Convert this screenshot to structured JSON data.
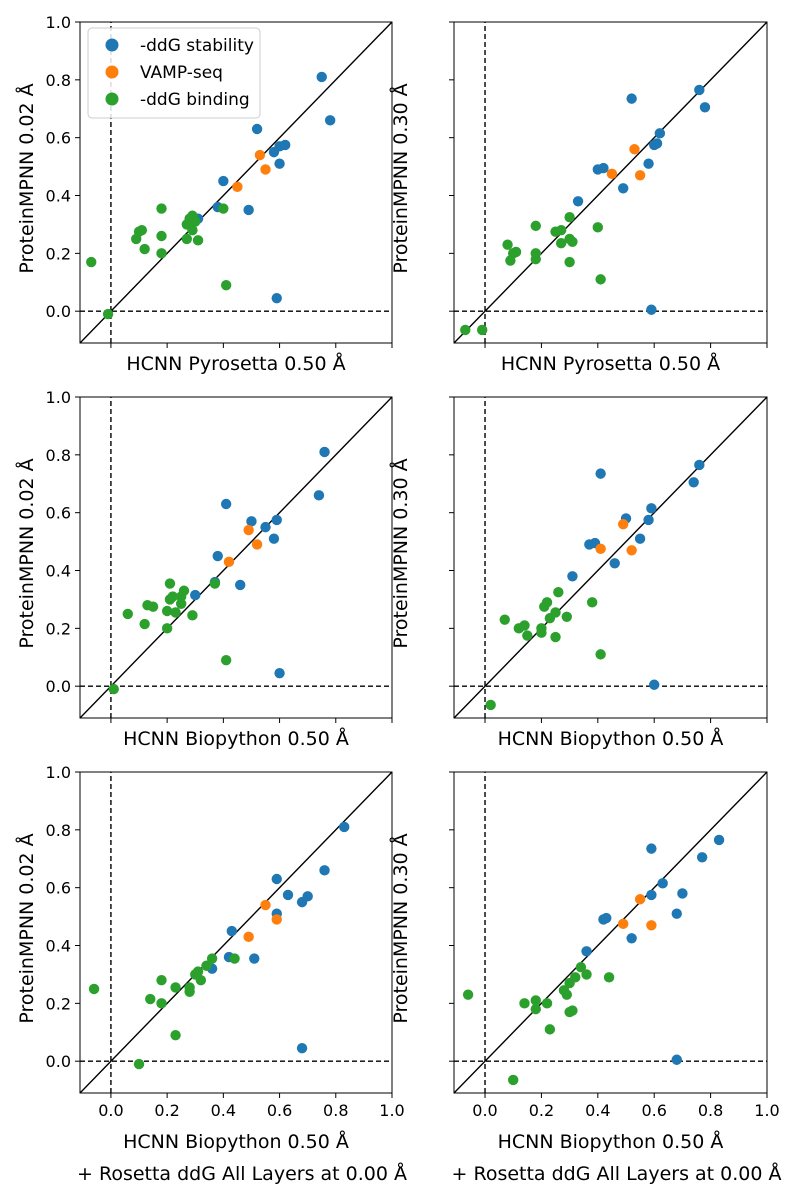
{
  "figure": {
    "colors": {
      "-ddG stability": "#1f77b4",
      "VAMP-seq": "#ff7f0e",
      "-ddG binding": "#2ca02c"
    },
    "legend": {
      "placement": "top-left",
      "entries": [
        "-ddG stability",
        "VAMP-seq",
        "-ddG binding"
      ]
    }
  },
  "chart_data": [
    {
      "type": "scatter",
      "xlabel": "HCNN Pyrosetta 0.50 Å",
      "ylabel": "ProteinMPNN 0.02 Å",
      "xlim": [
        -0.11,
        1.0
      ],
      "ylim": [
        -0.11,
        1.0
      ],
      "xticks": [
        0.0,
        0.2,
        0.4,
        0.6,
        0.8,
        1.0
      ],
      "yticks": [
        0.0,
        0.2,
        0.4,
        0.6,
        0.8,
        1.0
      ],
      "show_xticklabels": false,
      "show_yticklabels": true,
      "legend": true,
      "series": [
        {
          "name": "-ddG stability",
          "points": [
            [
              0.75,
              0.81
            ],
            [
              0.78,
              0.66
            ],
            [
              0.52,
              0.63
            ],
            [
              0.58,
              0.55
            ],
            [
              0.6,
              0.57
            ],
            [
              0.62,
              0.575
            ],
            [
              0.6,
              0.51
            ],
            [
              0.4,
              0.45
            ],
            [
              0.31,
              0.32
            ],
            [
              0.38,
              0.36
            ],
            [
              0.49,
              0.35
            ],
            [
              0.59,
              0.045
            ]
          ]
        },
        {
          "name": "VAMP-seq",
          "points": [
            [
              0.53,
              0.54
            ],
            [
              0.55,
              0.49
            ],
            [
              0.45,
              0.43
            ]
          ]
        },
        {
          "name": "-ddG binding",
          "points": [
            [
              -0.07,
              0.17
            ],
            [
              -0.01,
              -0.01
            ],
            [
              0.18,
              0.355
            ],
            [
              0.09,
              0.25
            ],
            [
              0.1,
              0.275
            ],
            [
              0.11,
              0.28
            ],
            [
              0.12,
              0.215
            ],
            [
              0.18,
              0.26
            ],
            [
              0.18,
              0.2
            ],
            [
              0.27,
              0.3
            ],
            [
              0.28,
              0.32
            ],
            [
              0.29,
              0.33
            ],
            [
              0.3,
              0.31
            ],
            [
              0.27,
              0.25
            ],
            [
              0.29,
              0.28
            ],
            [
              0.31,
              0.245
            ],
            [
              0.4,
              0.355
            ],
            [
              0.41,
              0.09
            ]
          ]
        }
      ]
    },
    {
      "type": "scatter",
      "xlabel": "HCNN Pyrosetta 0.50 Å",
      "ylabel": "ProteinMPNN 0.30 Å",
      "xlim": [
        -0.11,
        1.0
      ],
      "ylim": [
        -0.11,
        1.0
      ],
      "xticks": [
        0.0,
        0.2,
        0.4,
        0.6,
        0.8,
        1.0
      ],
      "yticks": [
        0.0,
        0.2,
        0.4,
        0.6,
        0.8,
        1.0
      ],
      "show_xticklabels": false,
      "show_yticklabels": false,
      "legend": false,
      "series": [
        {
          "name": "-ddG stability",
          "points": [
            [
              0.52,
              0.735
            ],
            [
              0.76,
              0.765
            ],
            [
              0.78,
              0.705
            ],
            [
              0.62,
              0.615
            ],
            [
              0.6,
              0.575
            ],
            [
              0.61,
              0.58
            ],
            [
              0.58,
              0.51
            ],
            [
              0.4,
              0.49
            ],
            [
              0.42,
              0.495
            ],
            [
              0.49,
              0.425
            ],
            [
              0.33,
              0.38
            ],
            [
              0.59,
              0.005
            ]
          ]
        },
        {
          "name": "VAMP-seq",
          "points": [
            [
              0.53,
              0.56
            ],
            [
              0.45,
              0.475
            ],
            [
              0.55,
              0.47
            ]
          ]
        },
        {
          "name": "-ddG binding",
          "points": [
            [
              -0.07,
              -0.065
            ],
            [
              -0.01,
              -0.065
            ],
            [
              0.08,
              0.23
            ],
            [
              0.09,
              0.175
            ],
            [
              0.1,
              0.2
            ],
            [
              0.11,
              0.205
            ],
            [
              0.18,
              0.295
            ],
            [
              0.18,
              0.2
            ],
            [
              0.18,
              0.18
            ],
            [
              0.25,
              0.275
            ],
            [
              0.27,
              0.28
            ],
            [
              0.3,
              0.325
            ],
            [
              0.3,
              0.25
            ],
            [
              0.27,
              0.235
            ],
            [
              0.31,
              0.24
            ],
            [
              0.3,
              0.17
            ],
            [
              0.4,
              0.29
            ],
            [
              0.41,
              0.11
            ]
          ]
        }
      ]
    },
    {
      "type": "scatter",
      "xlabel": "HCNN Biopython 0.50 Å",
      "ylabel": "ProteinMPNN 0.02 Å",
      "xlim": [
        -0.11,
        1.0
      ],
      "ylim": [
        -0.11,
        1.0
      ],
      "xticks": [
        0.0,
        0.2,
        0.4,
        0.6,
        0.8,
        1.0
      ],
      "yticks": [
        0.0,
        0.2,
        0.4,
        0.6,
        0.8,
        1.0
      ],
      "show_xticklabels": false,
      "show_yticklabels": true,
      "legend": false,
      "series": [
        {
          "name": "-ddG stability",
          "points": [
            [
              0.76,
              0.81
            ],
            [
              0.74,
              0.66
            ],
            [
              0.41,
              0.63
            ],
            [
              0.5,
              0.57
            ],
            [
              0.55,
              0.55
            ],
            [
              0.59,
              0.575
            ],
            [
              0.58,
              0.51
            ],
            [
              0.38,
              0.45
            ],
            [
              0.3,
              0.315
            ],
            [
              0.37,
              0.36
            ],
            [
              0.46,
              0.35
            ],
            [
              0.6,
              0.045
            ]
          ]
        },
        {
          "name": "VAMP-seq",
          "points": [
            [
              0.49,
              0.54
            ],
            [
              0.52,
              0.49
            ],
            [
              0.42,
              0.43
            ]
          ]
        },
        {
          "name": "-ddG binding",
          "points": [
            [
              0.01,
              -0.01
            ],
            [
              0.06,
              0.25
            ],
            [
              0.13,
              0.28
            ],
            [
              0.15,
              0.275
            ],
            [
              0.12,
              0.215
            ],
            [
              0.21,
              0.355
            ],
            [
              0.2,
              0.26
            ],
            [
              0.21,
              0.3
            ],
            [
              0.22,
              0.31
            ],
            [
              0.26,
              0.33
            ],
            [
              0.25,
              0.31
            ],
            [
              0.25,
              0.285
            ],
            [
              0.23,
              0.255
            ],
            [
              0.2,
              0.2
            ],
            [
              0.29,
              0.245
            ],
            [
              0.37,
              0.355
            ],
            [
              0.41,
              0.09
            ]
          ]
        }
      ]
    },
    {
      "type": "scatter",
      "xlabel": "HCNN Biopython 0.50 Å",
      "ylabel": "ProteinMPNN 0.30 Å",
      "xlim": [
        -0.11,
        1.0
      ],
      "ylim": [
        -0.11,
        1.0
      ],
      "xticks": [
        0.0,
        0.2,
        0.4,
        0.6,
        0.8,
        1.0
      ],
      "yticks": [
        0.0,
        0.2,
        0.4,
        0.6,
        0.8,
        1.0
      ],
      "show_xticklabels": false,
      "show_yticklabels": false,
      "legend": false,
      "series": [
        {
          "name": "-ddG stability",
          "points": [
            [
              0.41,
              0.735
            ],
            [
              0.76,
              0.765
            ],
            [
              0.74,
              0.705
            ],
            [
              0.59,
              0.615
            ],
            [
              0.5,
              0.58
            ],
            [
              0.58,
              0.575
            ],
            [
              0.55,
              0.51
            ],
            [
              0.37,
              0.49
            ],
            [
              0.39,
              0.495
            ],
            [
              0.46,
              0.425
            ],
            [
              0.31,
              0.38
            ],
            [
              0.6,
              0.005
            ]
          ]
        },
        {
          "name": "VAMP-seq",
          "points": [
            [
              0.49,
              0.56
            ],
            [
              0.41,
              0.475
            ],
            [
              0.52,
              0.47
            ]
          ]
        },
        {
          "name": "-ddG binding",
          "points": [
            [
              0.02,
              -0.065
            ],
            [
              0.07,
              0.23
            ],
            [
              0.12,
              0.2
            ],
            [
              0.14,
              0.21
            ],
            [
              0.15,
              0.175
            ],
            [
              0.2,
              0.185
            ],
            [
              0.2,
              0.2
            ],
            [
              0.21,
              0.275
            ],
            [
              0.22,
              0.29
            ],
            [
              0.23,
              0.235
            ],
            [
              0.25,
              0.255
            ],
            [
              0.26,
              0.325
            ],
            [
              0.29,
              0.24
            ],
            [
              0.25,
              0.17
            ],
            [
              0.38,
              0.29
            ],
            [
              0.41,
              0.11
            ]
          ]
        }
      ]
    },
    {
      "type": "scatter",
      "xlabel": "HCNN Biopython 0.50 Å",
      "xlabel2": "+ Rosetta ddG All Layers at 0.00 Å",
      "ylabel": "ProteinMPNN 0.02 Å",
      "xlim": [
        -0.11,
        1.0
      ],
      "ylim": [
        -0.11,
        1.0
      ],
      "xticks": [
        0.0,
        0.2,
        0.4,
        0.6,
        0.8,
        1.0
      ],
      "yticks": [
        0.0,
        0.2,
        0.4,
        0.6,
        0.8,
        1.0
      ],
      "show_xticklabels": true,
      "show_yticklabels": true,
      "legend": false,
      "series": [
        {
          "name": "-ddG stability",
          "points": [
            [
              0.83,
              0.81
            ],
            [
              0.76,
              0.66
            ],
            [
              0.59,
              0.63
            ],
            [
              0.63,
              0.575
            ],
            [
              0.7,
              0.57
            ],
            [
              0.68,
              0.55
            ],
            [
              0.59,
              0.51
            ],
            [
              0.43,
              0.45
            ],
            [
              0.36,
              0.32
            ],
            [
              0.42,
              0.36
            ],
            [
              0.51,
              0.355
            ],
            [
              0.68,
              0.045
            ]
          ]
        },
        {
          "name": "VAMP-seq",
          "points": [
            [
              0.55,
              0.54
            ],
            [
              0.59,
              0.49
            ],
            [
              0.49,
              0.43
            ]
          ]
        },
        {
          "name": "-ddG binding",
          "points": [
            [
              -0.06,
              0.25
            ],
            [
              0.1,
              -0.01
            ],
            [
              0.14,
              0.215
            ],
            [
              0.18,
              0.28
            ],
            [
              0.18,
              0.2
            ],
            [
              0.23,
              0.255
            ],
            [
              0.28,
              0.24
            ],
            [
              0.28,
              0.255
            ],
            [
              0.3,
              0.3
            ],
            [
              0.31,
              0.31
            ],
            [
              0.32,
              0.28
            ],
            [
              0.34,
              0.33
            ],
            [
              0.36,
              0.355
            ],
            [
              0.44,
              0.355
            ],
            [
              0.23,
              0.09
            ]
          ]
        }
      ]
    },
    {
      "type": "scatter",
      "xlabel": "HCNN Biopython 0.50 Å",
      "xlabel2": "+ Rosetta ddG All Layers at 0.00 Å",
      "ylabel": "ProteinMPNN 0.30 Å",
      "xlim": [
        -0.11,
        1.0
      ],
      "ylim": [
        -0.11,
        1.0
      ],
      "xticks": [
        0.0,
        0.2,
        0.4,
        0.6,
        0.8,
        1.0
      ],
      "yticks": [
        0.0,
        0.2,
        0.4,
        0.6,
        0.8,
        1.0
      ],
      "show_xticklabels": true,
      "show_yticklabels": false,
      "legend": false,
      "series": [
        {
          "name": "-ddG stability",
          "points": [
            [
              0.59,
              0.735
            ],
            [
              0.83,
              0.765
            ],
            [
              0.77,
              0.705
            ],
            [
              0.63,
              0.615
            ],
            [
              0.7,
              0.58
            ],
            [
              0.59,
              0.575
            ],
            [
              0.68,
              0.51
            ],
            [
              0.42,
              0.49
            ],
            [
              0.43,
              0.495
            ],
            [
              0.52,
              0.425
            ],
            [
              0.36,
              0.38
            ],
            [
              0.68,
              0.005
            ]
          ]
        },
        {
          "name": "VAMP-seq",
          "points": [
            [
              0.55,
              0.56
            ],
            [
              0.49,
              0.475
            ],
            [
              0.59,
              0.47
            ]
          ]
        },
        {
          "name": "-ddG binding",
          "points": [
            [
              -0.06,
              0.23
            ],
            [
              0.1,
              -0.065
            ],
            [
              0.14,
              0.2
            ],
            [
              0.18,
              0.21
            ],
            [
              0.18,
              0.18
            ],
            [
              0.22,
              0.2
            ],
            [
              0.23,
              0.11
            ],
            [
              0.28,
              0.245
            ],
            [
              0.29,
              0.23
            ],
            [
              0.3,
              0.27
            ],
            [
              0.3,
              0.17
            ],
            [
              0.31,
              0.175
            ],
            [
              0.32,
              0.29
            ],
            [
              0.34,
              0.325
            ],
            [
              0.36,
              0.3
            ],
            [
              0.44,
              0.29
            ]
          ]
        }
      ]
    }
  ]
}
